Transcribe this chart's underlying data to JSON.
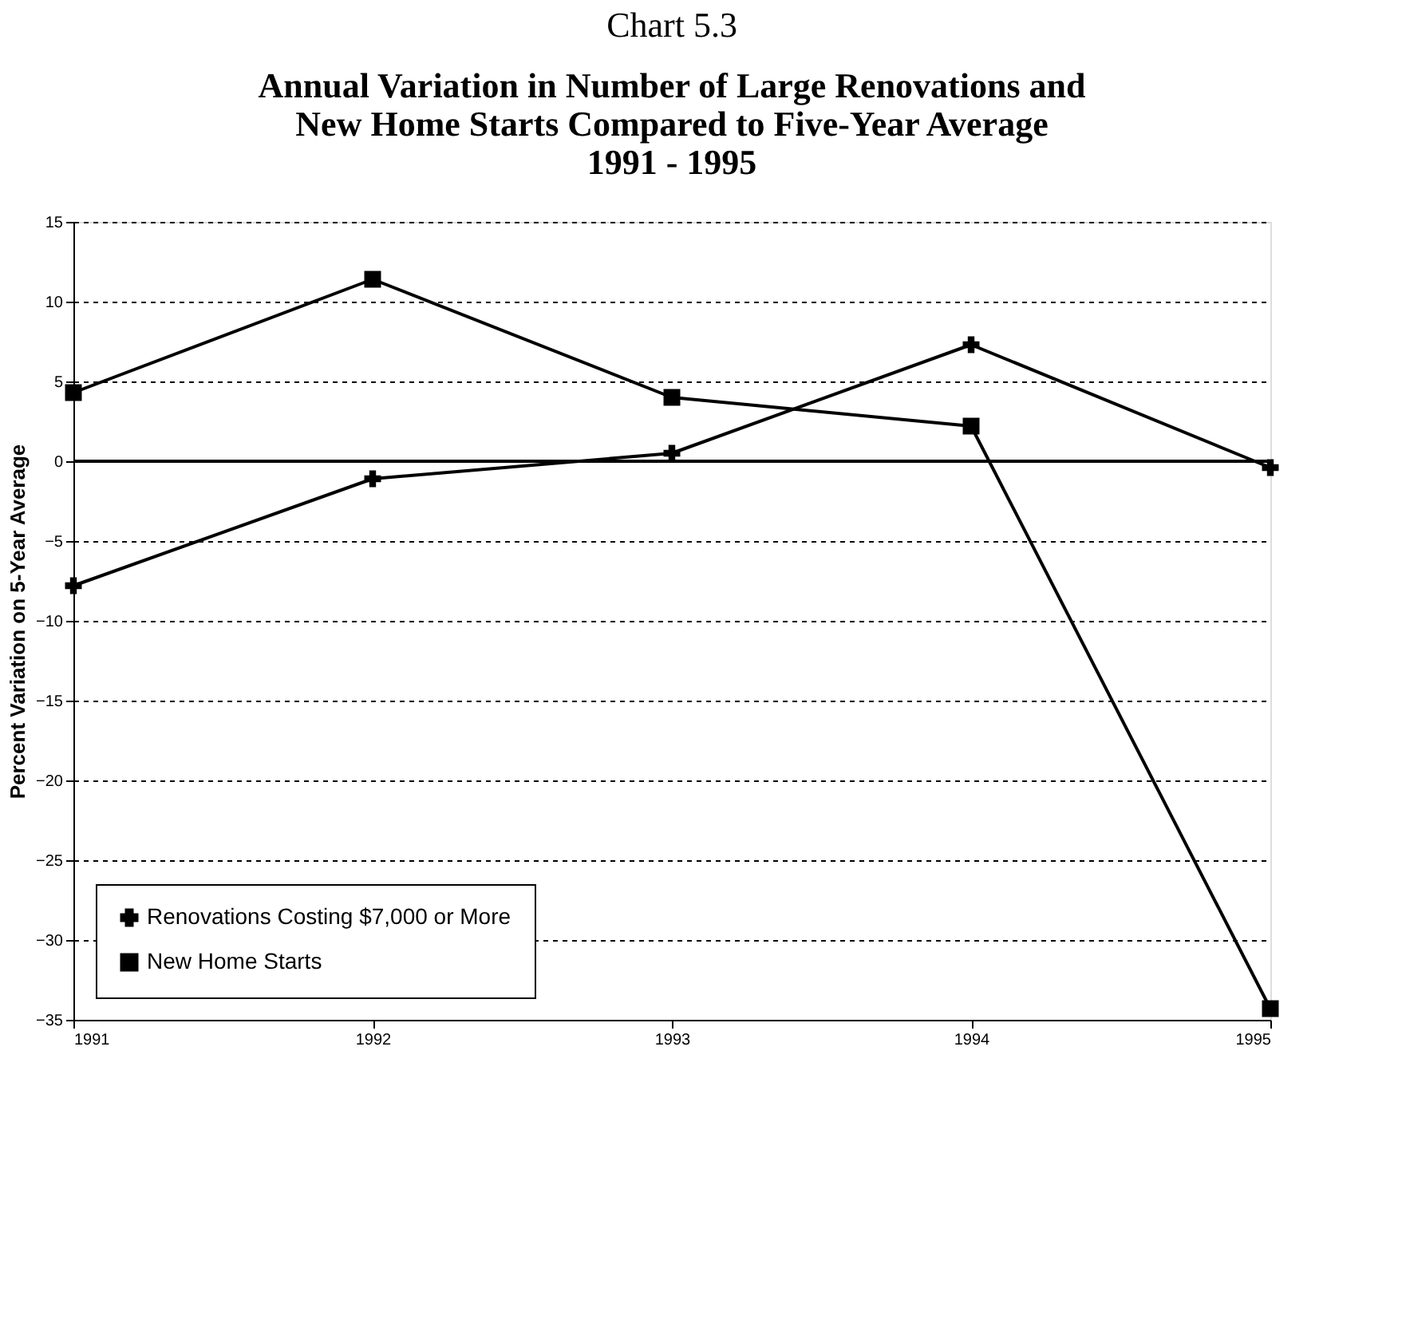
{
  "chart_data": {
    "type": "line",
    "title": "Chart 5.3",
    "subtitle": "Annual Variation in Number of Large Renovations and\nNew Home Starts Compared to Five-Year Average\n1991  -  1995",
    "ylabel": "Percent Variation on 5-Year Average",
    "x": [
      1991,
      1992,
      1993,
      1994,
      1995
    ],
    "series": [
      {
        "name": "Renovations Costing $7,000 or More",
        "color": "#000000",
        "marker": "cross",
        "values": [
          -7.8,
          -1.1,
          0.5,
          7.3,
          -0.4
        ]
      },
      {
        "name": "New Home Starts",
        "color": "#000000",
        "marker": "square",
        "values": [
          4.3,
          11.4,
          4.0,
          2.2,
          -34.3
        ]
      }
    ],
    "xlim": [
      1991,
      1995
    ],
    "xticks": [
      1991,
      1992,
      1993,
      1994,
      1995
    ],
    "ylim": [
      -35,
      15
    ],
    "yticks": [
      -35,
      -30,
      -25,
      -20,
      -15,
      -10,
      -5,
      0,
      5,
      10,
      15
    ],
    "ref_lines": [
      {
        "axis": "y",
        "value": 0,
        "color": "#000000",
        "line_style": "solid"
      }
    ],
    "grid": "y",
    "legend": "bottom left",
    "line_style": "solid"
  }
}
